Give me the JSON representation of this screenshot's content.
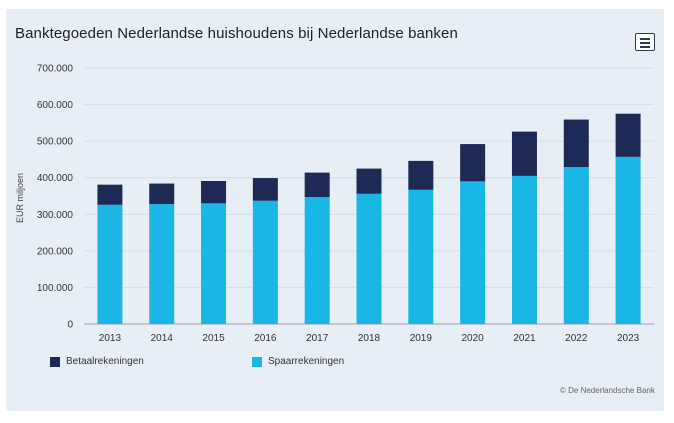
{
  "chart_data": {
    "type": "bar",
    "stacked": true,
    "title": "Banktegoeden Nederlandse huishoudens bij Nederlandse banken",
    "ylabel": "EUR miljoen",
    "xlabel": "",
    "ylim": [
      0,
      700000
    ],
    "yticks": [
      "0",
      "100.000",
      "200.000",
      "300.000",
      "400.000",
      "500.000",
      "600.000",
      "700.000"
    ],
    "categories": [
      "2013",
      "2014",
      "2015",
      "2016",
      "2017",
      "2018",
      "2019",
      "2020",
      "2021",
      "2022",
      "2023"
    ],
    "series": [
      {
        "name": "Spaarrekeningen",
        "color": "#1ab7e6",
        "values": [
          326000,
          328000,
          330000,
          337000,
          347000,
          356000,
          367000,
          390000,
          405000,
          429000,
          457000
        ]
      },
      {
        "name": "Betaalrekeningen",
        "color": "#1c2a55",
        "values": [
          55000,
          56000,
          61000,
          62000,
          67000,
          69000,
          79000,
          102000,
          121000,
          130000,
          118000
        ]
      }
    ],
    "legend_position": "bottom-left",
    "grid": true
  },
  "credit": "© De Nederlandsche Bank",
  "menu_icon": "hamburger-menu-icon"
}
